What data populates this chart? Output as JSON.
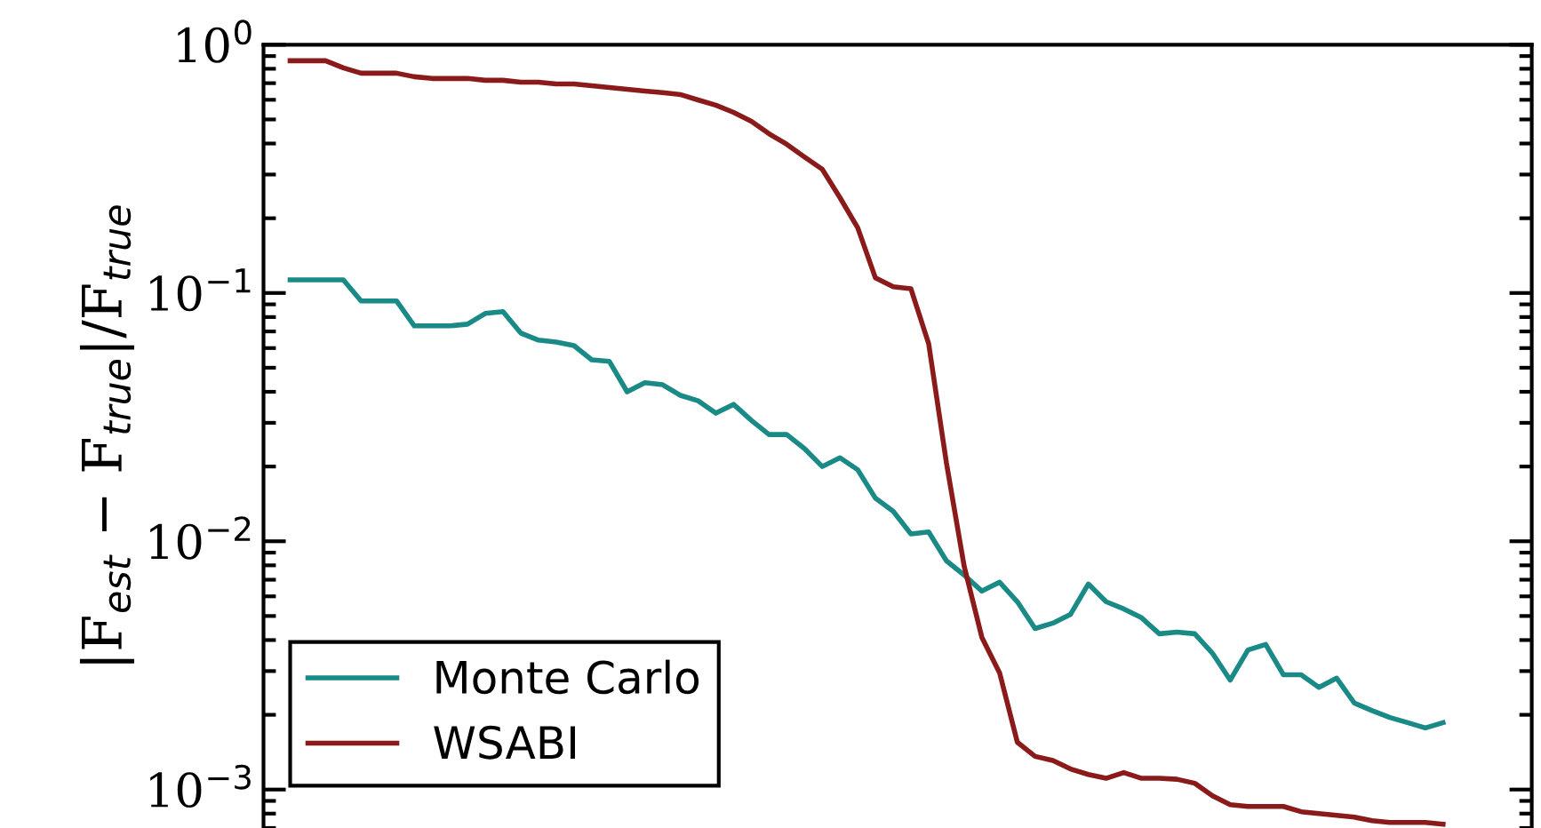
{
  "chart_data": {
    "type": "line",
    "ylabel": "|F$_{est}$ − F$_{true}$|/F$_{true}$",
    "categories": [
      null,
      null,
      null,
      null,
      null,
      null,
      null,
      null,
      null,
      null,
      null,
      null,
      null,
      null,
      null,
      null,
      null,
      null,
      null,
      null,
      null,
      null,
      null,
      null,
      null,
      null,
      null,
      null,
      null,
      null,
      null,
      null,
      null,
      null,
      null,
      null,
      null,
      null,
      null,
      null,
      null,
      null,
      null,
      null,
      null,
      null,
      null,
      null,
      null,
      null,
      null,
      null,
      null,
      null,
      null,
      null,
      null,
      null,
      null,
      null,
      null,
      null,
      null,
      null,
      null,
      null
    ],
    "series": [
      {
        "name": "Monte Carlo",
        "color": "#1a8a86",
        "values": [
          0.113,
          0.113,
          0.113,
          0.113,
          0.0929,
          0.0929,
          0.0929,
          0.0737,
          0.0737,
          0.0737,
          0.0749,
          0.0827,
          0.0841,
          0.069,
          0.0646,
          0.0635,
          0.0614,
          0.0538,
          0.053,
          0.04,
          0.0435,
          0.0427,
          0.0387,
          0.0368,
          0.0328,
          0.0356,
          0.0307,
          0.0269,
          0.0269,
          0.0236,
          0.02,
          0.0217,
          0.0194,
          0.0149,
          0.0132,
          0.0107,
          0.0109,
          0.00834,
          0.00731,
          0.0063,
          0.00684,
          0.00571,
          0.00445,
          0.00468,
          0.00508,
          0.00673,
          0.00571,
          0.00534,
          0.00492,
          0.00424,
          0.00431,
          0.00424,
          0.00354,
          0.00276,
          0.00365,
          0.00384,
          0.0029,
          0.0029,
          0.00258,
          0.00281,
          0.00223,
          0.00208,
          0.00195,
          0.00186,
          0.00177,
          0.00186
        ]
      },
      {
        "name": "WSABI",
        "color": "#8b1a1a",
        "values": [
          0.862,
          0.862,
          0.862,
          0.807,
          0.768,
          0.768,
          0.768,
          0.743,
          0.731,
          0.731,
          0.731,
          0.719,
          0.719,
          0.707,
          0.707,
          0.695,
          0.695,
          0.684,
          0.673,
          0.662,
          0.651,
          0.641,
          0.63,
          0.599,
          0.571,
          0.534,
          0.492,
          0.438,
          0.397,
          0.353,
          0.315,
          0.242,
          0.183,
          0.115,
          0.106,
          0.104,
          0.0625,
          0.0207,
          0.00794,
          0.0041,
          0.00295,
          0.00155,
          0.00136,
          0.00131,
          0.00121,
          0.00115,
          0.00111,
          0.00117,
          0.00111,
          0.00111,
          0.0011,
          0.00106,
          0.000944,
          0.000869,
          0.000855,
          0.000855,
          0.000855,
          0.000814,
          0.0008,
          0.000787,
          0.000774,
          0.000749,
          0.000737,
          0.000737,
          0.000737,
          0.000725
        ]
      }
    ],
    "log": "y",
    "ylim": [
      0.0007,
      1
    ],
    "yticks": [
      {
        "value": 0.001,
        "label": "10$^{−3}$"
      },
      {
        "value": 0.01,
        "label": "10$^{−2}$"
      },
      {
        "value": 0.1,
        "label": "10$^{−1}$"
      },
      {
        "value": 1,
        "label": "10$^{0}$"
      }
    ],
    "tick_labels": "y",
    "legend": "bottom left",
    "grid": false,
    "line_style": "solid",
    "marker": "none"
  }
}
